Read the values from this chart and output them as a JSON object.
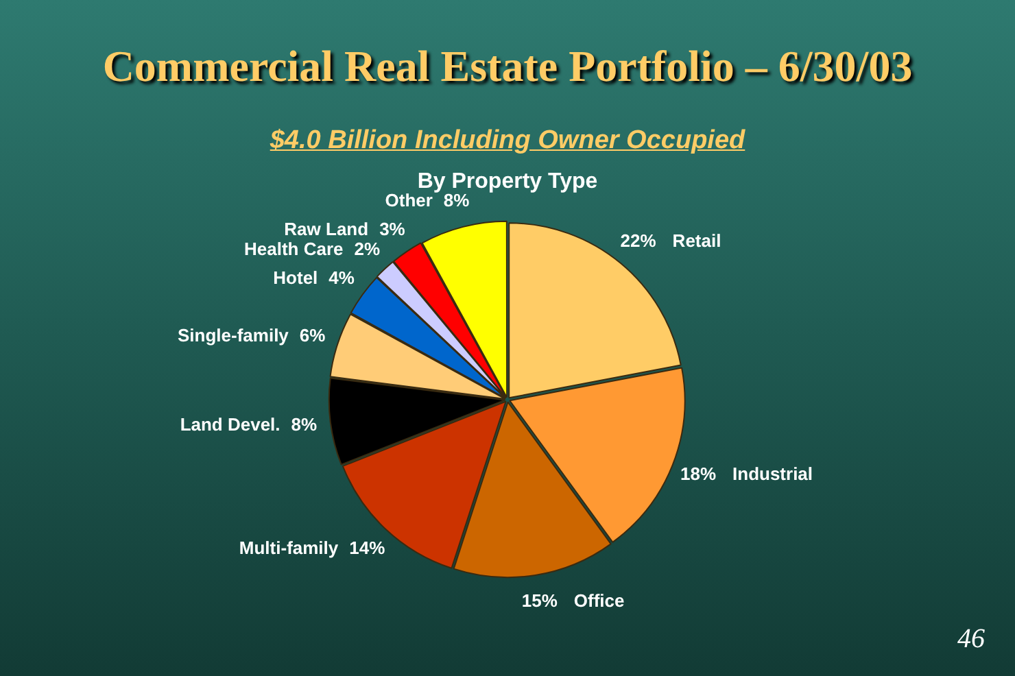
{
  "chart_data": {
    "type": "pie",
    "title": "Commercial Real Estate Portfolio – 6/30/03",
    "subtitle": "$4.0 Billion Including Owner Occupied",
    "annotations": [
      "By Property Type",
      "46"
    ],
    "categories": [
      "Retail",
      "Industrial",
      "Office",
      "Multi-family",
      "Land Devel.",
      "Single-family",
      "Hotel",
      "Health Care",
      "Raw Land",
      "Other"
    ],
    "values": [
      22,
      18,
      15,
      14,
      8,
      6,
      4,
      2,
      3,
      8
    ],
    "value_labels": [
      "22%",
      "18%",
      "15%",
      "14%",
      "8%",
      "6%",
      "4%",
      "2%",
      "3%",
      "8%"
    ],
    "colors": [
      "#ffcc66",
      "#ff9933",
      "#cc6600",
      "#cc3300",
      "#000000",
      "#ffcc77",
      "#0066cc",
      "#ccccff",
      "#ff0000",
      "#ffff00"
    ],
    "legend": false
  }
}
